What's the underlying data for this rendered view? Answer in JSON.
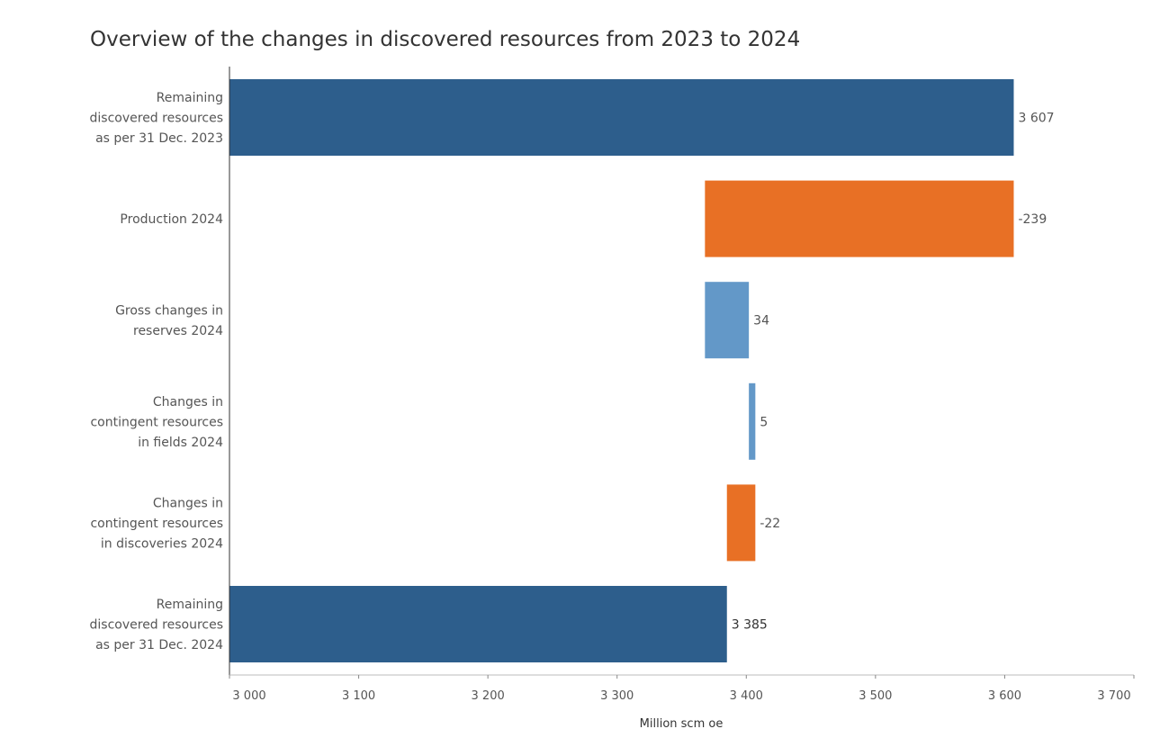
{
  "chart_data": {
    "type": "bar",
    "subtype": "waterfall",
    "orientation": "horizontal",
    "title": "Overview of the changes in discovered resources from 2023 to 2024",
    "xlabel": "Million scm oe",
    "ylabel": "",
    "xlim": [
      3000,
      3700
    ],
    "x_ticks": [
      3000,
      3100,
      3200,
      3300,
      3400,
      3500,
      3600,
      3700
    ],
    "x_tick_labels": [
      "3 000",
      "3 100",
      "3 200",
      "3 300",
      "3 400",
      "3 500",
      "3 600",
      "3 700"
    ],
    "grid": false,
    "legend": "none",
    "colors": {
      "total": "#2d5e8c",
      "increase": "#6398c8",
      "decrease": "#e87025"
    },
    "categories": [
      [
        "Remaining",
        "discovered resources",
        "as per 31 Dec. 2023"
      ],
      [
        "Production 2024"
      ],
      [
        "Gross changes in",
        "reserves 2024"
      ],
      [
        "Changes in",
        "contingent resources",
        "in fields 2024"
      ],
      [
        "Changes in",
        "contingent resources",
        "in discoveries 2024"
      ],
      [
        "Remaining",
        "discovered resources",
        "as per 31 Dec. 2024"
      ]
    ],
    "values": [
      3607,
      -239,
      34,
      5,
      -22,
      3385
    ],
    "value_labels": [
      "3 607",
      "-239",
      "34",
      "5",
      "-22",
      "3 385"
    ],
    "bar_kind": [
      "total",
      "decrease",
      "increase",
      "increase",
      "decrease",
      "total"
    ]
  }
}
